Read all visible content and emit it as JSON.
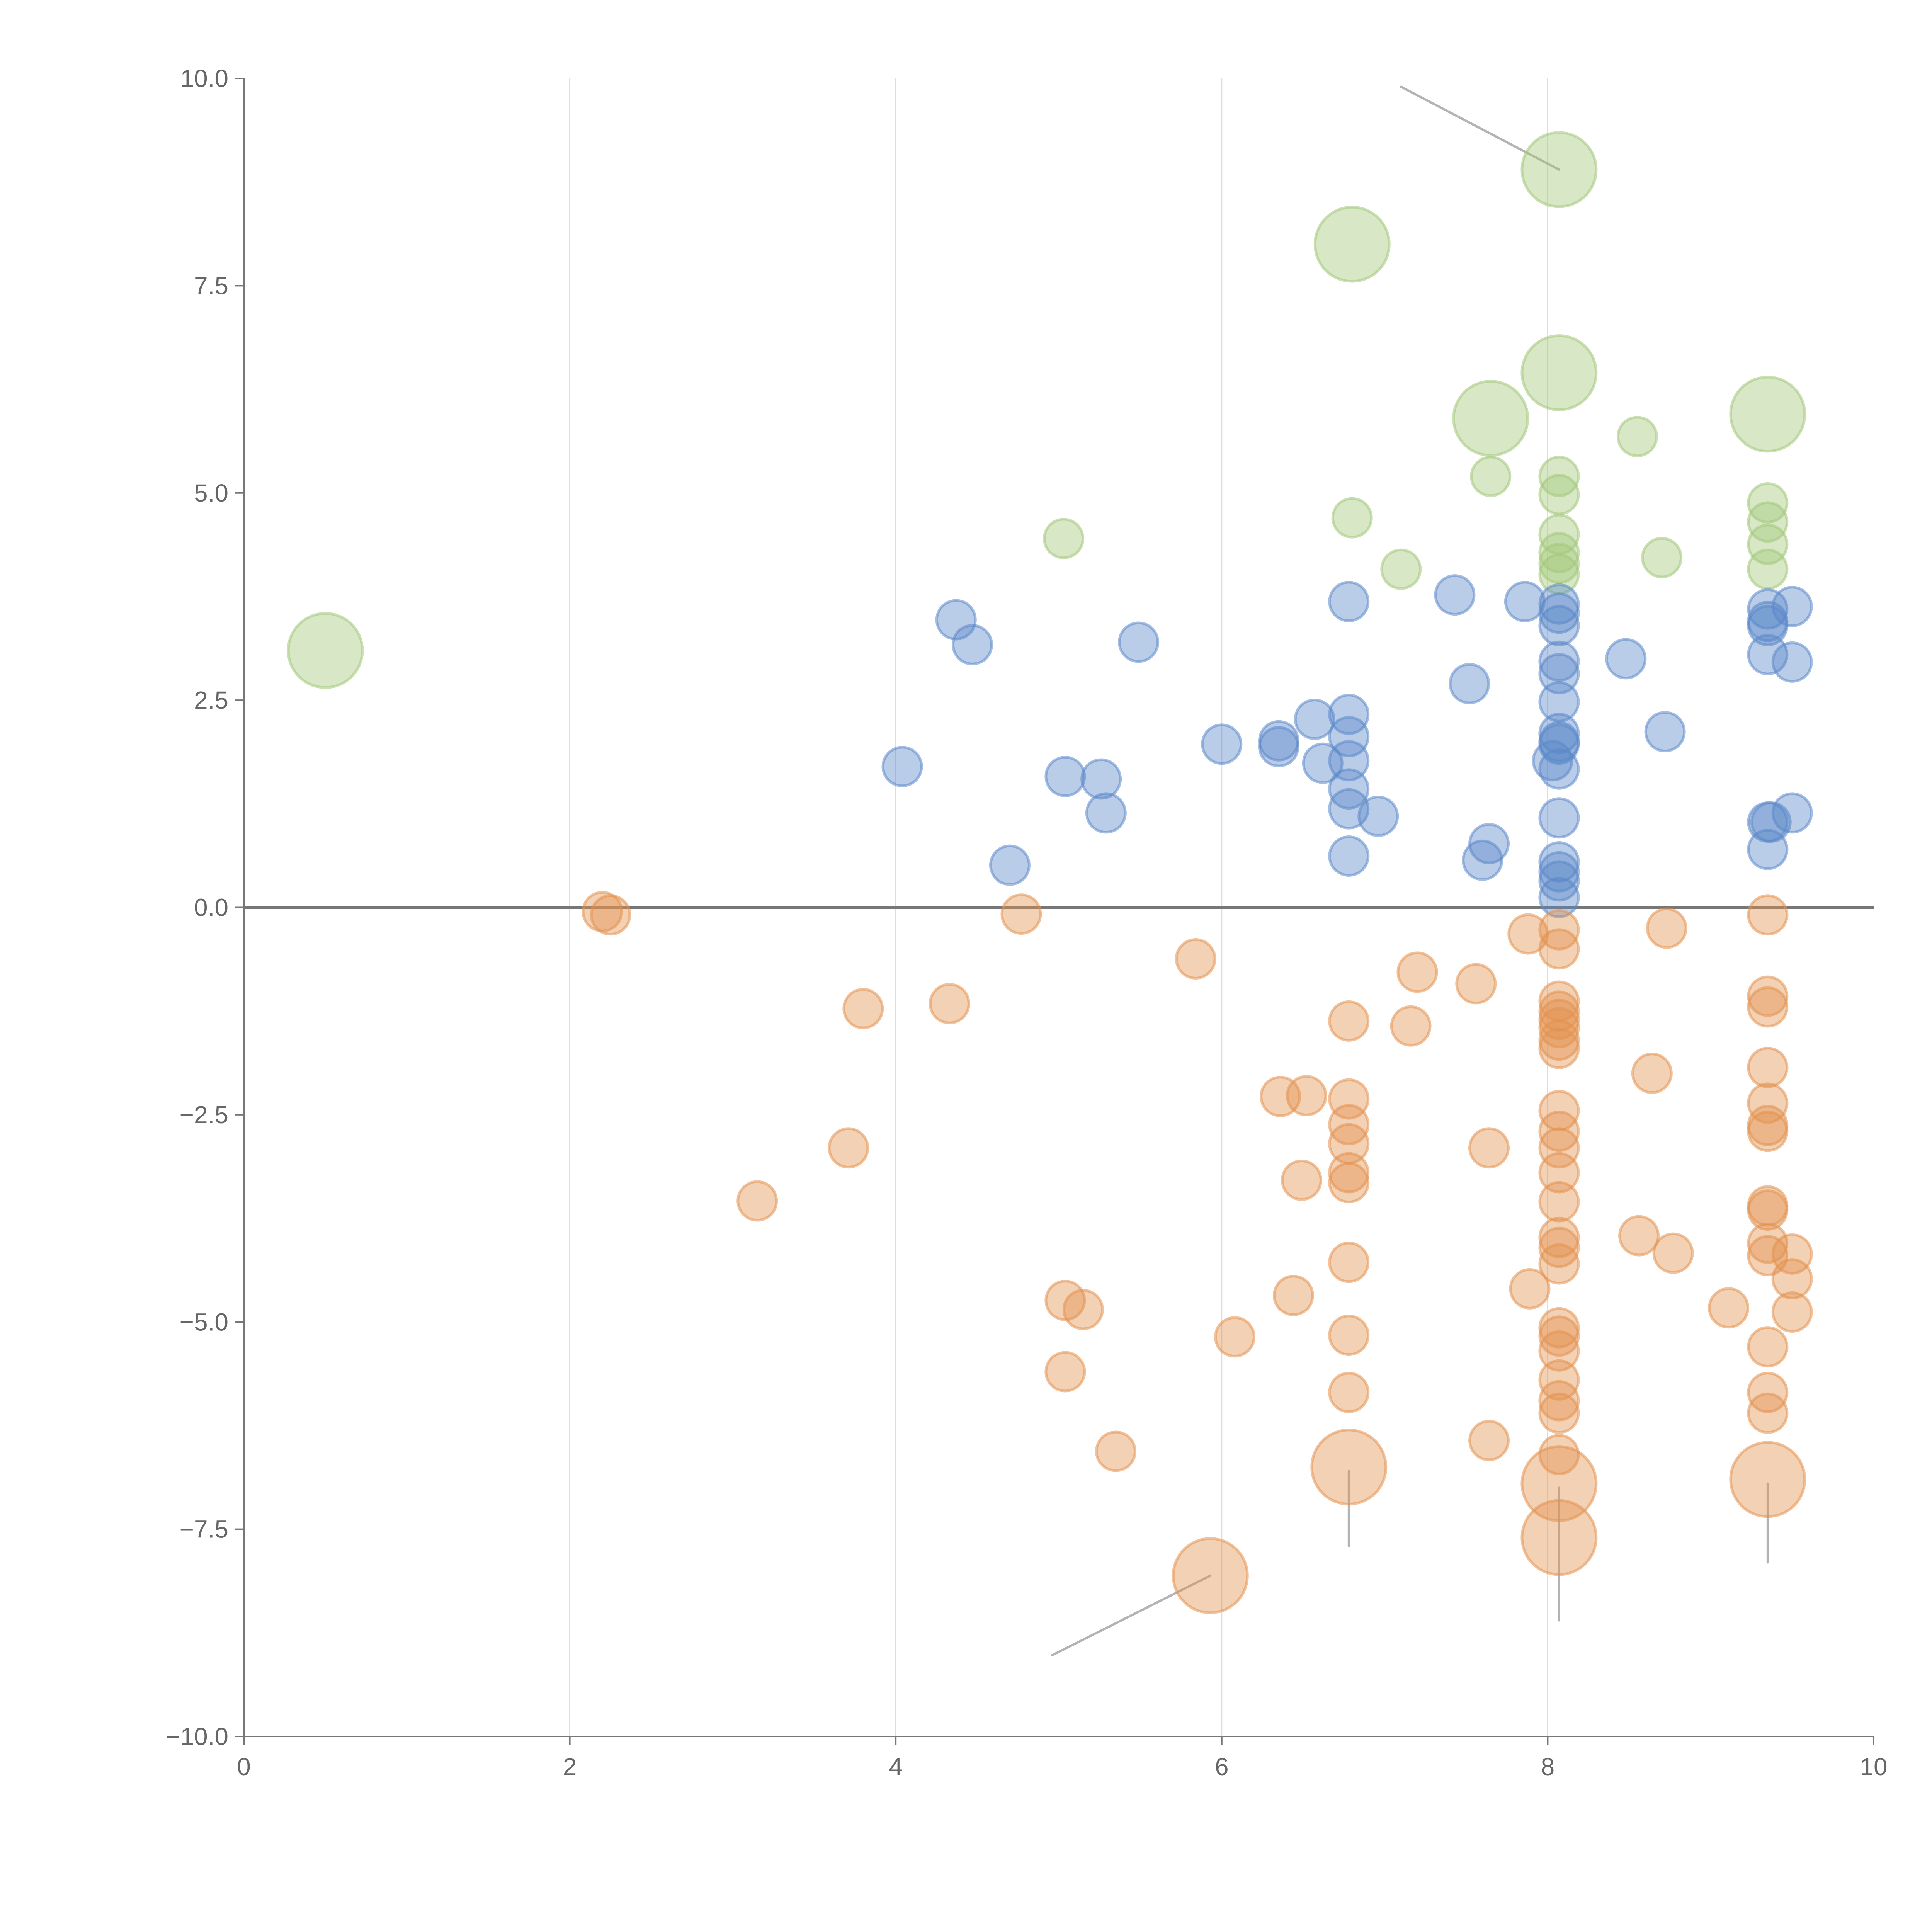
{
  "chart_data": {
    "type": "scatter",
    "title": "",
    "xlabel": "",
    "ylabel": "",
    "xlim": [
      0,
      10
    ],
    "ylim": [
      -10,
      10
    ],
    "x_ticks": [
      "0",
      "2",
      "4",
      "6",
      "8",
      "10"
    ],
    "y_ticks": [
      "10.0",
      "7.5",
      "5.0",
      "2.5",
      "0.0",
      "−2.5",
      "−5.0",
      "−7.5",
      "−10.0"
    ],
    "grid": "vertical",
    "colors": {
      "green": "#a3c77a",
      "blue": "#5b88c8",
      "orange": "#e3914f"
    },
    "series": [
      {
        "name": "green",
        "points": [
          [
            0.5,
            3.1,
            2
          ],
          [
            6.8,
            8.0,
            2
          ],
          [
            8.07,
            8.9,
            2
          ],
          [
            8.07,
            6.45,
            2
          ],
          [
            7.65,
            5.9,
            2
          ],
          [
            9.35,
            5.95,
            2
          ],
          [
            8.55,
            5.68,
            1
          ],
          [
            7.65,
            5.2,
            1
          ],
          [
            8.07,
            5.2,
            1
          ],
          [
            8.07,
            4.98,
            1
          ],
          [
            9.35,
            4.88,
            1
          ],
          [
            6.8,
            4.7,
            1
          ],
          [
            9.35,
            4.65,
            1
          ],
          [
            8.07,
            4.5,
            1
          ],
          [
            5.03,
            4.45,
            1
          ],
          [
            9.35,
            4.38,
            1
          ],
          [
            8.07,
            4.28,
            1
          ],
          [
            8.7,
            4.22,
            1
          ],
          [
            8.07,
            4.15,
            1
          ],
          [
            7.1,
            4.08,
            1
          ],
          [
            9.35,
            4.08,
            1
          ],
          [
            8.07,
            4.02,
            1
          ]
        ]
      },
      {
        "name": "blue",
        "points": [
          [
            4.37,
            3.47,
            1
          ],
          [
            4.47,
            3.17,
            1
          ],
          [
            5.49,
            3.2,
            1
          ],
          [
            4.04,
            1.7,
            1
          ],
          [
            5.04,
            1.58,
            1
          ],
          [
            5.26,
            1.55,
            1
          ],
          [
            5.29,
            1.14,
            1
          ],
          [
            4.7,
            0.51,
            1
          ],
          [
            6.0,
            1.97,
            1
          ],
          [
            6.35,
            2.01,
            1
          ],
          [
            6.35,
            1.94,
            1
          ],
          [
            6.57,
            2.27,
            1
          ],
          [
            6.62,
            1.74,
            1
          ],
          [
            6.78,
            2.33,
            1
          ],
          [
            6.78,
            2.06,
            1
          ],
          [
            6.78,
            1.77,
            1
          ],
          [
            6.78,
            1.43,
            1
          ],
          [
            6.78,
            1.19,
            1
          ],
          [
            6.96,
            1.1,
            1
          ],
          [
            6.78,
            0.62,
            1
          ],
          [
            6.78,
            3.69,
            1
          ],
          [
            7.43,
            3.77,
            1
          ],
          [
            7.86,
            3.69,
            1
          ],
          [
            7.52,
            2.7,
            1
          ],
          [
            7.64,
            0.77,
            1
          ],
          [
            7.6,
            0.57,
            1
          ],
          [
            8.07,
            3.66,
            1
          ],
          [
            8.07,
            3.55,
            1
          ],
          [
            8.07,
            3.4,
            1
          ],
          [
            8.07,
            2.97,
            1
          ],
          [
            8.07,
            2.82,
            1
          ],
          [
            8.07,
            2.48,
            1
          ],
          [
            8.07,
            2.1,
            1
          ],
          [
            8.07,
            2.0,
            1
          ],
          [
            8.07,
            1.97,
            1
          ],
          [
            8.03,
            1.77,
            1
          ],
          [
            8.07,
            1.67,
            1
          ],
          [
            8.07,
            1.08,
            1
          ],
          [
            8.07,
            0.55,
            1
          ],
          [
            8.07,
            0.43,
            1
          ],
          [
            8.07,
            0.32,
            1
          ],
          [
            8.07,
            0.12,
            1
          ],
          [
            8.48,
            3.0,
            1
          ],
          [
            8.72,
            2.12,
            1
          ],
          [
            9.35,
            3.6,
            1
          ],
          [
            9.35,
            3.45,
            1
          ],
          [
            9.35,
            3.4,
            1
          ],
          [
            9.35,
            3.05,
            1
          ],
          [
            9.35,
            1.03,
            1
          ],
          [
            9.37,
            1.03,
            1
          ],
          [
            9.35,
            0.7,
            1
          ],
          [
            9.5,
            3.63,
            1
          ],
          [
            9.5,
            2.96,
            1
          ],
          [
            9.5,
            1.14,
            1
          ]
        ]
      },
      {
        "name": "orange",
        "points": [
          [
            2.2,
            -0.05,
            1
          ],
          [
            2.25,
            -0.09,
            1
          ],
          [
            4.77,
            -0.08,
            1
          ],
          [
            5.84,
            -0.62,
            1
          ],
          [
            3.8,
            -1.22,
            1
          ],
          [
            4.33,
            -1.16,
            1
          ],
          [
            3.71,
            -2.9,
            1
          ],
          [
            3.15,
            -3.54,
            1
          ],
          [
            5.04,
            -4.74,
            1
          ],
          [
            5.15,
            -4.85,
            1
          ],
          [
            5.04,
            -5.6,
            1
          ],
          [
            5.35,
            -6.56,
            1
          ],
          [
            6.08,
            -5.18,
            1
          ],
          [
            6.44,
            -4.68,
            1
          ],
          [
            6.49,
            -3.29,
            1
          ],
          [
            6.36,
            -2.28,
            1
          ],
          [
            6.52,
            -2.27,
            1
          ],
          [
            6.78,
            -1.37,
            1
          ],
          [
            6.78,
            -2.31,
            1
          ],
          [
            6.78,
            -2.62,
            1
          ],
          [
            6.78,
            -2.85,
            1
          ],
          [
            6.78,
            -3.2,
            1
          ],
          [
            6.78,
            -3.32,
            1
          ],
          [
            6.78,
            -4.28,
            1
          ],
          [
            6.78,
            -5.16,
            1
          ],
          [
            6.78,
            -5.85,
            1
          ],
          [
            6.78,
            -6.75,
            2
          ],
          [
            5.93,
            -8.06,
            2
          ],
          [
            7.16,
            -1.43,
            1
          ],
          [
            7.2,
            -0.78,
            1
          ],
          [
            7.56,
            -0.92,
            1
          ],
          [
            7.64,
            -2.9,
            1
          ],
          [
            7.64,
            -6.43,
            1
          ],
          [
            7.88,
            -0.32,
            1
          ],
          [
            7.89,
            -4.6,
            1
          ],
          [
            8.07,
            -0.27,
            1
          ],
          [
            8.07,
            -0.5,
            1
          ],
          [
            8.07,
            -1.13,
            1
          ],
          [
            8.07,
            -1.25,
            1
          ],
          [
            8.07,
            -1.35,
            1
          ],
          [
            8.07,
            -1.45,
            1
          ],
          [
            8.07,
            -1.6,
            1
          ],
          [
            8.07,
            -1.7,
            1
          ],
          [
            8.07,
            -2.45,
            1
          ],
          [
            8.07,
            -2.7,
            1
          ],
          [
            8.07,
            -2.9,
            1
          ],
          [
            8.07,
            -3.2,
            1
          ],
          [
            8.07,
            -3.55,
            1
          ],
          [
            8.07,
            -3.98,
            1
          ],
          [
            8.07,
            -4.1,
            1
          ],
          [
            8.07,
            -4.3,
            1
          ],
          [
            8.07,
            -5.07,
            1
          ],
          [
            8.07,
            -5.17,
            1
          ],
          [
            8.07,
            -5.35,
            1
          ],
          [
            8.07,
            -5.7,
            1
          ],
          [
            8.07,
            -5.95,
            1
          ],
          [
            8.07,
            -6.1,
            1
          ],
          [
            8.07,
            -6.6,
            1
          ],
          [
            8.07,
            -6.95,
            2
          ],
          [
            8.07,
            -7.6,
            2
          ],
          [
            8.73,
            -0.25,
            1
          ],
          [
            8.64,
            -2.0,
            1
          ],
          [
            8.56,
            -3.96,
            1
          ],
          [
            8.77,
            -4.17,
            1
          ],
          [
            9.11,
            -4.83,
            1
          ],
          [
            9.35,
            -0.09,
            1
          ],
          [
            9.35,
            -1.07,
            1
          ],
          [
            9.35,
            -1.2,
            1
          ],
          [
            9.35,
            -1.93,
            1
          ],
          [
            9.35,
            -2.36,
            1
          ],
          [
            9.35,
            -2.63,
            1
          ],
          [
            9.35,
            -2.7,
            1
          ],
          [
            9.35,
            -3.6,
            1
          ],
          [
            9.35,
            -3.65,
            1
          ],
          [
            9.35,
            -4.05,
            1
          ],
          [
            9.35,
            -4.2,
            1
          ],
          [
            9.35,
            -5.3,
            1
          ],
          [
            9.35,
            -5.85,
            1
          ],
          [
            9.35,
            -6.1,
            1
          ],
          [
            9.35,
            -6.9,
            2
          ],
          [
            9.5,
            -4.18,
            1
          ],
          [
            9.5,
            -4.48,
            1
          ],
          [
            9.5,
            -4.88,
            1
          ]
        ]
      }
    ],
    "leader_lines": [
      [
        [
          8.07,
          8.9
        ],
        [
          7.1,
          9.9
        ]
      ],
      [
        [
          5.93,
          -8.06
        ],
        [
          4.96,
          -9.02
        ]
      ],
      [
        [
          6.78,
          -6.8
        ],
        [
          6.78,
          -7.7
        ]
      ],
      [
        [
          8.07,
          -7.0
        ],
        [
          8.07,
          -8.6
        ]
      ],
      [
        [
          9.35,
          -6.95
        ],
        [
          9.35,
          -7.9
        ]
      ]
    ]
  }
}
